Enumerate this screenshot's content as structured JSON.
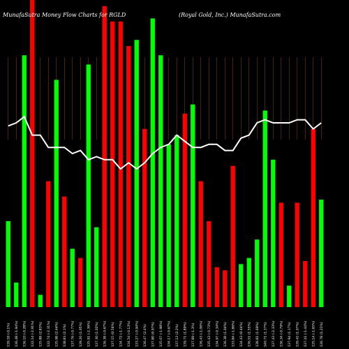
{
  "header": {
    "left_title": "MunafaSutra  Money Flow  Charts for RGLD",
    "right_title": "(Royal Gold, Inc.) MunafaSutra.com"
  },
  "colors": {
    "background": "#000000",
    "up": "#00ff00",
    "down": "#ff0000",
    "line": "#ffffff",
    "grid": "#8b4513"
  },
  "chart_data": {
    "type": "bar",
    "title": "MunafaSutra  Money Flow  Charts for RGLD",
    "subtitle": "(Royal Gold, Inc.) MunafaSutra.com",
    "ylim": [
      0,
      100
    ],
    "grid": true,
    "categories": [
      "139.18 (-0.1%)",
      "136.48 (-1.94%)",
      "136.10 (-0.28%)",
      "132.14 (-2.91%)",
      "135.88 (2.83%)",
      "132.74 (-2.31%)",
      "135.98 (2.44%)",
      "138.83 (2.1%)",
      "137.76 (-0.77%)",
      "139.20 (1.05%)",
      "135.91 (-2.36%)",
      "137.30 (1.02%)",
      "136.38 (-0.67%)",
      "137.15 (0.56%)",
      "134.72 (-1.77%)",
      "134.54 (-0.13%)",
      "133.27 (-0.94%)",
      "136.47 (2.4%)",
      "137.80 (0.97%)",
      "135.07 (-1.98%)",
      "134.17 (-0.67%)",
      "137.12 (2.2%)",
      "139.71 (1.89%)",
      "137.89 (-1.3%)",
      "136.43 (-1.06%)",
      "135.43 (-0.73%)",
      "134.97 (-0.34%)",
      "136.38 (1.04%)",
      "133.84 (-1.86%)",
      "134.43 (0.44%)",
      "136.51 (1.55%)",
      "138.81 (1.69%)",
      "140.71 (1.37%)",
      "137.43 (-2.33%)",
      "136.34 (-0.79%)",
      "137.94 (1.17%)",
      "139.42 (1.07%)",
      "137.41 (-1.44%)",
      "135.14 (-1.65%)",
      "136.78 (1.21%)"
    ],
    "series": [
      {
        "values": [
          28,
          8,
          82,
          100,
          4,
          41,
          74,
          36,
          19,
          16,
          79,
          26,
          98,
          93,
          93,
          85,
          87,
          58,
          94,
          82,
          53,
          56,
          63,
          66,
          41,
          28,
          13,
          12,
          46,
          14,
          16,
          22,
          64,
          48,
          34,
          7,
          34,
          15,
          58,
          35
        ],
        "colors": [
          "green",
          "green",
          "green",
          "red",
          "green",
          "red",
          "green",
          "red",
          "green",
          "red",
          "green",
          "green",
          "red",
          "red",
          "red",
          "red",
          "green",
          "red",
          "green",
          "green",
          "green",
          "green",
          "red",
          "green",
          "red",
          "red",
          "red",
          "red",
          "red",
          "green",
          "green",
          "green",
          "green",
          "green",
          "red",
          "green",
          "red",
          "red",
          "red",
          "green"
        ]
      },
      {
        "type": "line",
        "values": [
          59,
          60,
          62,
          56,
          56,
          52,
          52,
          52,
          50,
          51,
          48,
          49,
          48,
          48,
          45,
          47,
          45,
          47,
          50,
          52,
          53,
          56,
          54,
          52,
          52,
          53,
          53,
          51,
          51,
          55,
          56,
          60,
          61,
          60,
          60,
          60,
          61,
          61,
          58,
          60
        ]
      }
    ]
  }
}
